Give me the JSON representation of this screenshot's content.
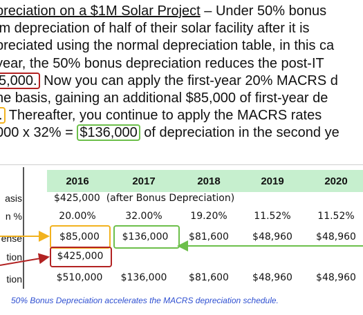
{
  "paragraph": {
    "line1_title": "preciation on a $1M Solar Project",
    "line1_rest": " – Under 50% bonus",
    "line2": "im depreciation of half of their solar facility after it is",
    "line3": "preciated using the normal depreciation table, in this ca",
    "line4": "year, the 50% bonus depreciation reduces the post-IT",
    "line5_boxed": "5,000.",
    "line5_rest": " Now you can apply the first-year 20% MACRS d",
    "line6": "he basis, gaining an additional $85,000 of first-year de",
    "line7_boxed": ".",
    "line7_rest": " Thereafter, you continue to apply the MACRS rates",
    "line8_start": "000 x 32% = ",
    "line8_boxed": "$136,000",
    "line8_rest": " of depreciation in the second ye"
  },
  "table": {
    "years": [
      "2016",
      "2017",
      "2018",
      "2019",
      "2020"
    ],
    "row_labels": [
      "asis",
      "n %",
      "ense",
      "tion",
      "tion"
    ],
    "basis_value": "$425,000",
    "basis_note": "(after Bonus Depreciation)",
    "rates": [
      "20.00%",
      "32.00%",
      "19.20%",
      "11.52%",
      "11.52%"
    ],
    "expense": [
      "$85,000",
      "$136,000",
      "$81,600",
      "$48,960",
      "$48,960"
    ],
    "bonus": [
      "$425,000"
    ],
    "total": [
      "$510,000",
      "$136,000",
      "$81,600",
      "$48,960",
      "$48,960"
    ]
  },
  "caption": "50% Bonus Depreciation accelerates the MACRS depreciation schedule.",
  "colors": {
    "red": "#b22222",
    "orange": "#f2b21e",
    "green": "#6cbf4a",
    "header_bg": "#c6efce",
    "caption": "#2e4fd1"
  }
}
